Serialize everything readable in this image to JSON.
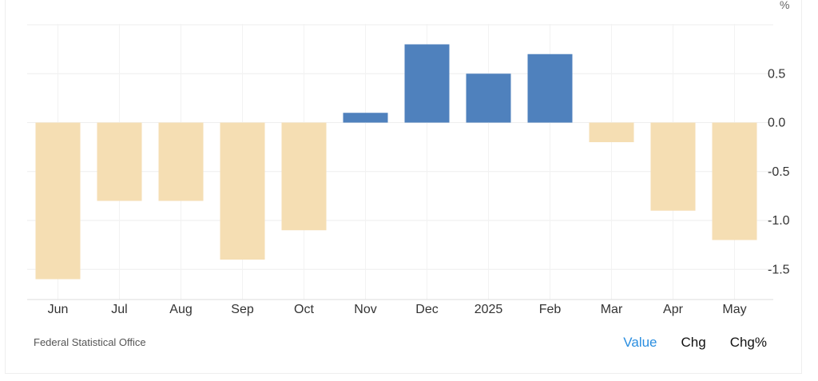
{
  "chart_data": {
    "type": "bar",
    "unit": "%",
    "categories": [
      "Jun",
      "Jul",
      "Aug",
      "Sep",
      "Oct",
      "Nov",
      "Dec",
      "2025",
      "Feb",
      "Mar",
      "Apr",
      "May"
    ],
    "values": [
      -1.6,
      -0.8,
      -0.8,
      -1.4,
      -1.1,
      0.1,
      0.8,
      0.5,
      0.7,
      -0.2,
      -0.9,
      -1.2
    ],
    "yticks": [
      "0.5",
      "0.0",
      "-0.5",
      "-1.0",
      "-1.5"
    ],
    "ylim": [
      -1.82,
      1.0
    ],
    "grid": true,
    "colors": {
      "positive": "#4f81bd",
      "negative": "#f5deb3"
    }
  },
  "footer": {
    "source": "Federal Statistical Office",
    "tabs": [
      {
        "label": "Value",
        "active": true
      },
      {
        "label": "Chg",
        "active": false
      },
      {
        "label": "Chg%",
        "active": false
      }
    ]
  }
}
